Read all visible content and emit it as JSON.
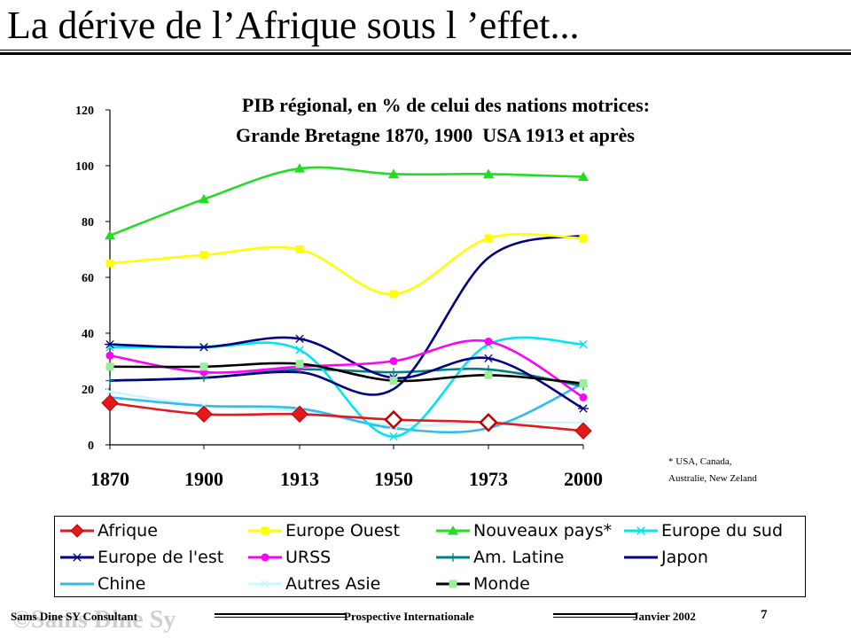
{
  "slide": {
    "title": "La dérive de l’Afrique sous l ’effet...",
    "footnote_line1": "* USA, Canada,",
    "footnote_line2": "Australie, New Zeland"
  },
  "footer": {
    "watermark": "©Sams Dine Sy",
    "consultant": "Sams Dine SY Consultant",
    "subject": "Prospective Internationale",
    "date": "Janvier 2002",
    "page": "7"
  },
  "chart_data": {
    "type": "line",
    "title": "PIB régional, en % de celui des nations motrices:",
    "subtitle": "Grande Bretagne 1870, 1900  USA 1913 et après",
    "categories": [
      "1870",
      "1900",
      "1913",
      "1950",
      "1973",
      "2000"
    ],
    "ylim": [
      0,
      120
    ],
    "yticks": [
      0,
      20,
      40,
      60,
      80,
      100,
      120
    ],
    "grid": false,
    "legend_position": "bottom",
    "series": [
      {
        "name": "Afrique",
        "color": "#e31a1c",
        "marker": "diamond",
        "values": [
          15,
          11,
          11,
          9,
          8,
          5
        ]
      },
      {
        "name": "Europe Ouest",
        "color": "#ffff00",
        "marker": "square",
        "values": [
          65,
          68,
          70,
          54,
          74,
          74
        ]
      },
      {
        "name": "Nouveaux pays*",
        "color": "#22dd22",
        "marker": "triangle",
        "values": [
          75,
          88,
          99,
          97,
          97,
          96
        ]
      },
      {
        "name": "Europe du sud",
        "color": "#00e5ee",
        "marker": "x",
        "values": [
          35,
          35,
          34,
          3,
          36,
          36
        ]
      },
      {
        "name": "Europe de l'est",
        "color": "#000080",
        "marker": "star",
        "values": [
          36,
          35,
          38,
          24,
          31,
          13
        ]
      },
      {
        "name": "URSS",
        "color": "#ff00ff",
        "marker": "circle",
        "values": [
          32,
          26,
          28,
          30,
          37,
          17
        ]
      },
      {
        "name": "Am. Latine",
        "color": "#008080",
        "marker": "plus",
        "values": [
          23,
          24,
          27,
          26,
          27,
          21
        ]
      },
      {
        "name": "Japon",
        "color": "#000080",
        "marker": "none",
        "values": [
          23,
          24,
          26,
          20,
          67,
          75
        ]
      },
      {
        "name": "Chine",
        "color": "#33bbee",
        "marker": "none",
        "values": [
          17,
          14,
          13,
          6,
          6,
          22
        ]
      },
      {
        "name": "Autres Asie",
        "color": "#ccf7ff",
        "marker": "x",
        "values": [
          19,
          14,
          12,
          7,
          8,
          8
        ]
      },
      {
        "name": "Monde",
        "color": "#000000",
        "marker": "square-green",
        "values": [
          28,
          28,
          29,
          23,
          25,
          22
        ]
      }
    ]
  }
}
